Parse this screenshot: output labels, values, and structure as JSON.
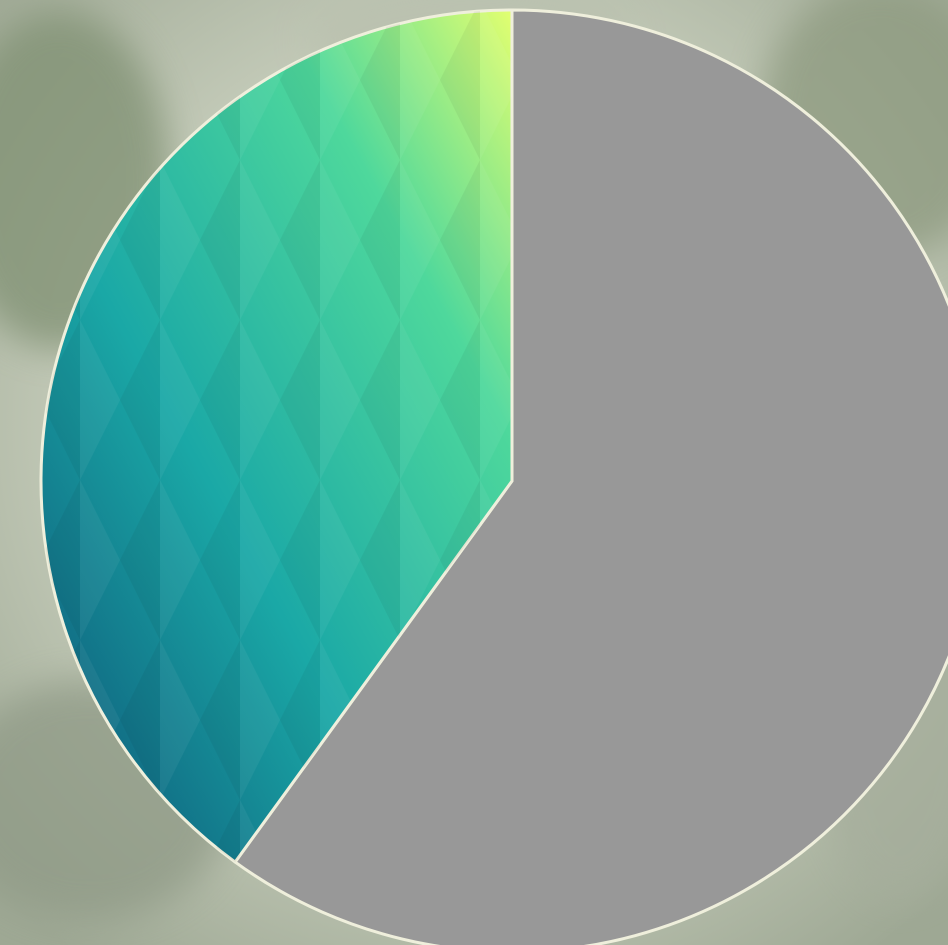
{
  "chart_data": {
    "type": "pie",
    "start_angle_deg": 0,
    "direction": "clockwise",
    "slices": [
      {
        "value": 60,
        "fill": "solid",
        "color": "#989898"
      },
      {
        "value": 40,
        "fill": "gradient",
        "gradient_colors": [
          "#0c4f74",
          "#1aa8a6",
          "#4ed89c",
          "#e2ff70"
        ]
      }
    ],
    "stroke_color": "#efefdc"
  }
}
